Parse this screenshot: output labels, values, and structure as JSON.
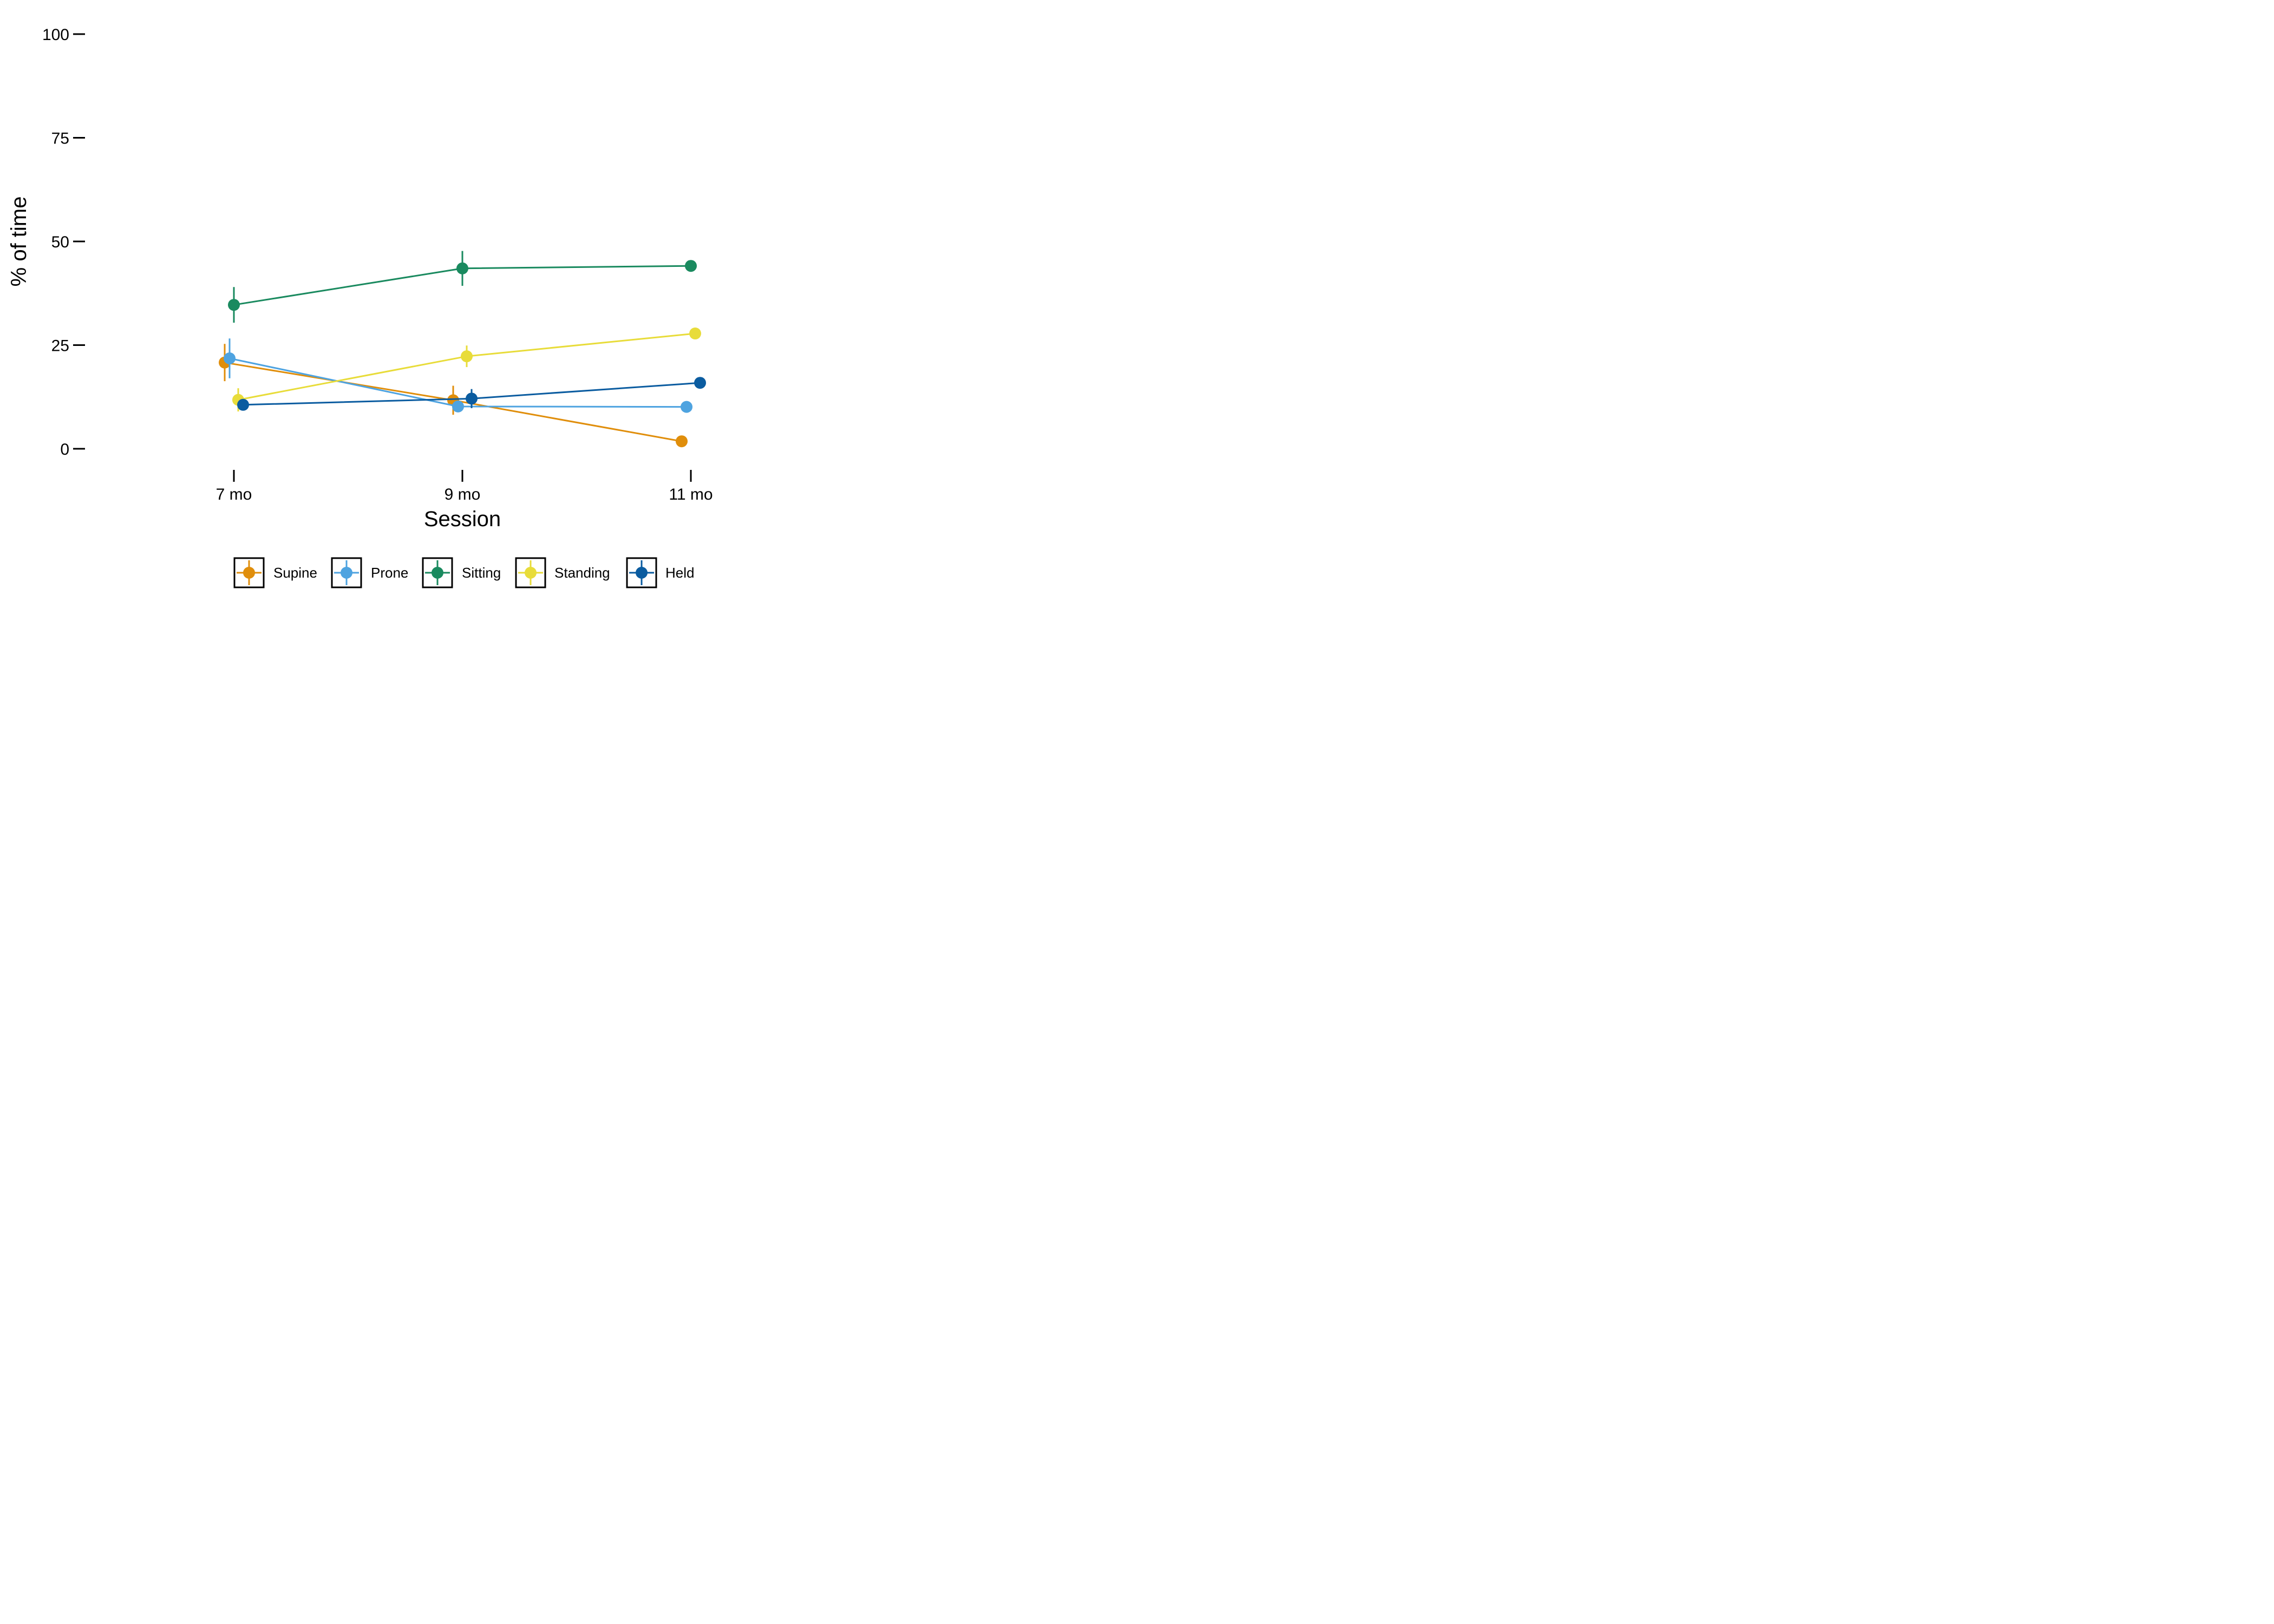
{
  "chart_data": {
    "type": "line",
    "xlabel": "Session",
    "ylabel": "% of time",
    "categories": [
      "7 mo",
      "9 mo",
      "11 mo"
    ],
    "ylim": [
      0,
      100
    ],
    "yticks": [
      0,
      25,
      50,
      75,
      100
    ],
    "grid": false,
    "legend_position": "bottom",
    "error_bars": true,
    "series": [
      {
        "name": "Supine",
        "color": "#E08E0B",
        "values": [
          20.8,
          11.7,
          1.8
        ],
        "errors": [
          4.5,
          3.5,
          0
        ]
      },
      {
        "name": "Prone",
        "color": "#4EA3E0",
        "values": [
          21.8,
          10.2,
          10.1
        ],
        "errors": [
          4.8,
          1.3,
          0
        ]
      },
      {
        "name": "Sitting",
        "color": "#1A8A5F",
        "values": [
          34.7,
          43.5,
          44.1
        ],
        "errors": [
          4.3,
          4.2,
          0
        ]
      },
      {
        "name": "Standing",
        "color": "#E8DC3A",
        "values": [
          11.8,
          22.3,
          27.8
        ],
        "errors": [
          2.8,
          2.6,
          0
        ]
      },
      {
        "name": "Held",
        "color": "#0B5CA0",
        "values": [
          10.6,
          12.1,
          15.9
        ],
        "errors": [
          0,
          2.3,
          0
        ]
      }
    ]
  }
}
